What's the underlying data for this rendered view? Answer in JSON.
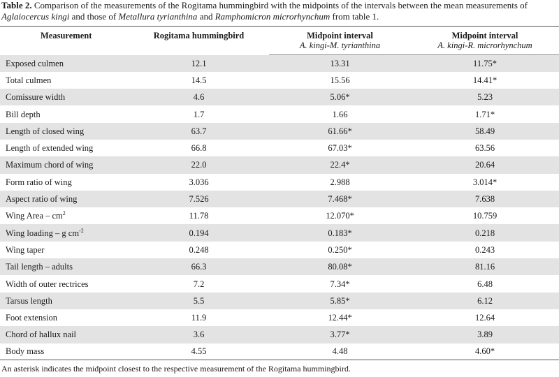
{
  "caption": {
    "label": "Table 2.",
    "text_1": " Comparison of the measurements of the Rogitama hummingbird with the midpoints of the intervals between the mean measurements of ",
    "species_1": "Aglaiocercus kingi",
    "text_2": " and those of ",
    "species_2": "Metallura tyrianthina",
    "text_3": " and ",
    "species_3": "Ramphomicron microrhynchum",
    "text_4": " from table 1."
  },
  "headers": {
    "measurement": "Measurement",
    "rogitama": "Rogitama hummingbird",
    "mid1_title": "Midpoint interval",
    "mid1_sub": "A. kingi-M. tyrianthina",
    "mid2_title": "Midpoint interval",
    "mid2_sub": "A. kingi-R. microrhynchum"
  },
  "rows": [
    {
      "name": "Exposed culmen",
      "rog": "12.1",
      "m1": "13.31",
      "m2": "11.75*"
    },
    {
      "name": "Total culmen",
      "rog": "14.5",
      "m1": "15.56",
      "m2": "14.41*"
    },
    {
      "name": "Comissure width",
      "rog": "4.6",
      "m1": "5.06*",
      "m2": "5.23"
    },
    {
      "name": "Bill depth",
      "rog": "1.7",
      "m1": "1.66",
      "m2": "1.71*"
    },
    {
      "name": "Length of closed wing",
      "rog": "63.7",
      "m1": "61.66*",
      "m2": "58.49"
    },
    {
      "name": "Length of extended wing",
      "rog": "66.8",
      "m1": "67.03*",
      "m2": "63.56"
    },
    {
      "name": "Maximum chord of wing",
      "rog": "22.0",
      "m1": "22.4*",
      "m2": "20.64"
    },
    {
      "name": "Form ratio of wing",
      "rog": "3.036",
      "m1": "2.988",
      "m2": "3.014*"
    },
    {
      "name": "Aspect ratio of wing",
      "rog": "7.526",
      "m1": "7.468*",
      "m2": "7.638"
    },
    {
      "name": "Wing Area – cm",
      "sup": "2",
      "rog": "11.78",
      "m1": "12.070*",
      "m2": "10.759"
    },
    {
      "name": "Wing loading – g cm",
      "sup": "-2",
      "rog": "0.194",
      "m1": "0.183*",
      "m2": "0.218"
    },
    {
      "name": "Wing taper",
      "rog": "0.248",
      "m1": "0.250*",
      "m2": "0.243"
    },
    {
      "name": "Tail length – adults",
      "rog": "66.3",
      "m1": "80.08*",
      "m2": "81.16"
    },
    {
      "name": "Width of outer rectrices",
      "rog": "7.2",
      "m1": "7.34*",
      "m2": "6.48"
    },
    {
      "name": "Tarsus length",
      "rog": "5.5",
      "m1": "5.85*",
      "m2": "6.12"
    },
    {
      "name": "Foot extension",
      "rog": "11.9",
      "m1": "12.44*",
      "m2": "12.64"
    },
    {
      "name": "Chord of hallux nail",
      "rog": "3.6",
      "m1": "3.77*",
      "m2": "3.89"
    },
    {
      "name": "Body mass",
      "rog": "4.55",
      "m1": "4.48",
      "m2": "4.60*"
    }
  ],
  "footnote": "An asterisk indicates the midpoint closest to the respective measurement of the Rogitama hummingbird."
}
